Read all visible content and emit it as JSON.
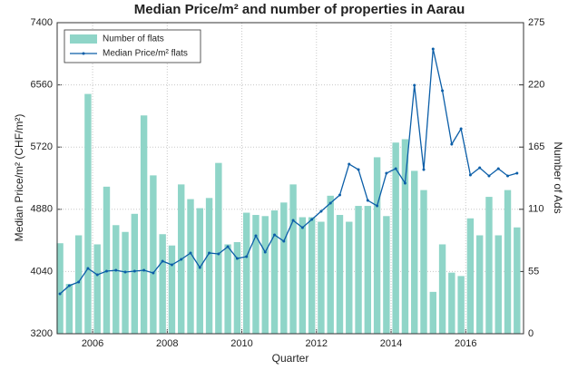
{
  "chart_data": {
    "type": "bar",
    "title": "Median Price/m² and number of properties in Aarau",
    "xlabel": "Quarter",
    "ylabel": "Median Price/m² (CHF/m²)",
    "y2label": "Number of Ads",
    "x": [
      2005.125,
      2005.375,
      2005.625,
      2005.875,
      2006.125,
      2006.375,
      2006.625,
      2006.875,
      2007.125,
      2007.375,
      2007.625,
      2007.875,
      2008.125,
      2008.375,
      2008.625,
      2008.875,
      2009.125,
      2009.375,
      2009.625,
      2009.875,
      2010.125,
      2010.375,
      2010.625,
      2010.875,
      2011.125,
      2011.375,
      2011.625,
      2011.875,
      2012.125,
      2012.375,
      2012.625,
      2012.875,
      2013.125,
      2013.375,
      2013.625,
      2013.875,
      2014.125,
      2014.375,
      2014.625,
      2014.875,
      2015.125,
      2015.375,
      2015.625,
      2015.875,
      2016.125,
      2016.375,
      2016.625,
      2016.875,
      2017.125,
      2017.375
    ],
    "series": [
      {
        "name": "Number of flats",
        "type": "bar",
        "axis": "y2",
        "color": "#8fd5c8",
        "values": [
          80,
          44,
          87,
          212,
          79,
          130,
          96,
          90,
          106,
          193,
          140,
          88,
          78,
          132,
          119,
          111,
          120,
          151,
          79,
          81,
          107,
          105,
          104,
          109,
          116,
          132,
          103,
          103,
          99,
          122,
          105,
          99,
          113,
          113,
          156,
          104,
          169,
          172,
          144,
          127,
          37,
          79,
          54,
          51,
          102,
          87,
          121,
          87,
          127,
          94
        ]
      },
      {
        "name": "Median Price/m² flats",
        "type": "line",
        "axis": "y",
        "color": "#0b5ea8",
        "values": [
          3739,
          3849,
          3898,
          4082,
          3996,
          4045,
          4057,
          4033,
          4045,
          4057,
          4020,
          4180,
          4130,
          4204,
          4290,
          4094,
          4290,
          4278,
          4375,
          4216,
          4241,
          4522,
          4302,
          4535,
          4449,
          4730,
          4633,
          4743,
          4853,
          4963,
          5073,
          5490,
          5416,
          5000,
          4927,
          5367,
          5429,
          5233,
          6555,
          5416,
          7045,
          6482,
          5759,
          5967,
          5343,
          5441,
          5331,
          5429,
          5331,
          5367
        ]
      }
    ],
    "xlim": [
      2005.05,
      2017.55
    ],
    "xticks": [
      2006,
      2008,
      2010,
      2012,
      2014,
      2016
    ],
    "ylim": [
      3200,
      7400
    ],
    "yticks": [
      3200,
      4040,
      4880,
      5720,
      6560,
      7400
    ],
    "y2lim": [
      0,
      275
    ],
    "y2ticks": [
      0,
      55,
      110,
      165,
      220,
      275
    ],
    "grid": true,
    "legend": "upper left"
  }
}
